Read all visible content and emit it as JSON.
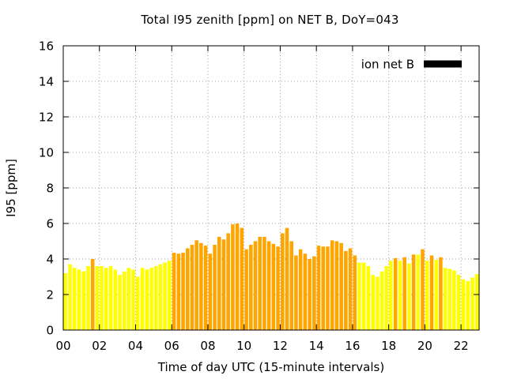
{
  "chart_data": {
    "type": "bar",
    "title": "Total I95 zenith [ppm] on NET B, DoY=043",
    "xlabel": "Time of day UTC (15-minute intervals)",
    "ylabel": "I95 [ppm]",
    "ylim": [
      0,
      16
    ],
    "yticks": [
      0,
      2,
      4,
      6,
      8,
      10,
      12,
      14,
      16
    ],
    "xlim": [
      0,
      92
    ],
    "xticks": [
      {
        "pos": 0,
        "label": "00"
      },
      {
        "pos": 8,
        "label": "02"
      },
      {
        "pos": 16,
        "label": "04"
      },
      {
        "pos": 24,
        "label": "06"
      },
      {
        "pos": 32,
        "label": "08"
      },
      {
        "pos": 40,
        "label": "10"
      },
      {
        "pos": 48,
        "label": "12"
      },
      {
        "pos": 56,
        "label": "14"
      },
      {
        "pos": 64,
        "label": "16"
      },
      {
        "pos": 72,
        "label": "18"
      },
      {
        "pos": 80,
        "label": "20"
      },
      {
        "pos": 88,
        "label": "22"
      }
    ],
    "grid": true,
    "legend": {
      "placement": "top-right",
      "label": "ion net B",
      "color": "#000000"
    },
    "bar_colors": {
      "yellow": "#ffff00",
      "orange": "#ffa500"
    },
    "values": [
      3.2,
      3.7,
      3.5,
      3.4,
      3.3,
      3.6,
      4.0,
      3.6,
      3.6,
      3.5,
      3.6,
      3.4,
      3.1,
      3.3,
      3.5,
      3.4,
      3.0,
      3.5,
      3.4,
      3.5,
      3.6,
      3.7,
      3.8,
      3.9,
      4.35,
      4.3,
      4.35,
      4.6,
      4.8,
      5.05,
      4.9,
      4.75,
      4.3,
      4.8,
      5.25,
      5.1,
      5.45,
      5.95,
      6.0,
      5.75,
      4.55,
      4.8,
      5.0,
      5.25,
      5.25,
      5.0,
      4.85,
      4.7,
      5.45,
      5.75,
      5.0,
      4.2,
      4.55,
      4.3,
      4.0,
      4.15,
      4.75,
      4.7,
      4.7,
      5.05,
      5.0,
      4.9,
      4.45,
      4.6,
      4.2,
      3.8,
      3.8,
      3.6,
      3.1,
      3.0,
      3.3,
      3.6,
      3.9,
      4.05,
      3.9,
      4.1,
      3.75,
      4.25,
      4.25,
      4.55,
      3.9,
      4.2,
      3.95,
      4.1,
      3.5,
      3.45,
      3.35,
      3.1,
      2.85,
      2.75,
      2.95,
      3.15
    ],
    "colors": [
      "yellow",
      "yellow",
      "yellow",
      "yellow",
      "yellow",
      "yellow",
      "orange",
      "yellow",
      "yellow",
      "yellow",
      "yellow",
      "yellow",
      "yellow",
      "yellow",
      "yellow",
      "yellow",
      "yellow",
      "yellow",
      "yellow",
      "yellow",
      "yellow",
      "yellow",
      "yellow",
      "yellow",
      "orange",
      "orange",
      "orange",
      "orange",
      "orange",
      "orange",
      "orange",
      "orange",
      "orange",
      "orange",
      "orange",
      "orange",
      "orange",
      "orange",
      "orange",
      "orange",
      "orange",
      "orange",
      "orange",
      "orange",
      "orange",
      "orange",
      "orange",
      "orange",
      "orange",
      "orange",
      "orange",
      "orange",
      "orange",
      "orange",
      "orange",
      "orange",
      "orange",
      "orange",
      "orange",
      "orange",
      "orange",
      "orange",
      "orange",
      "orange",
      "orange",
      "yellow",
      "yellow",
      "yellow",
      "yellow",
      "yellow",
      "yellow",
      "yellow",
      "yellow",
      "orange",
      "yellow",
      "orange",
      "yellow",
      "orange",
      "yellow",
      "orange",
      "yellow",
      "orange",
      "yellow",
      "orange",
      "yellow",
      "yellow",
      "yellow",
      "yellow",
      "yellow",
      "yellow",
      "yellow",
      "yellow"
    ]
  }
}
